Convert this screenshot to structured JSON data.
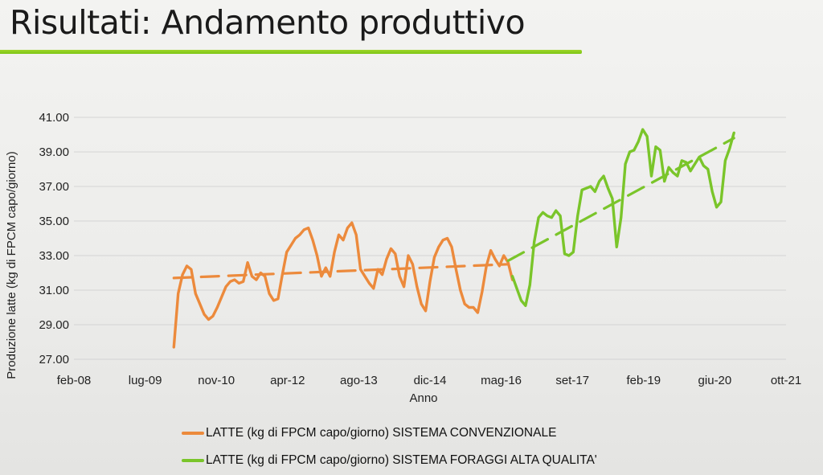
{
  "slide": {
    "title": "Risultati: Andamento produttivo"
  },
  "colors": {
    "conventional": "#ec8a3c",
    "high_quality": "#7ac52a",
    "grid": "#d4d4d4",
    "title_rule": "#8fcf1f"
  },
  "chart_data": {
    "type": "line",
    "xlabel": "Anno",
    "ylabel": "Produzione latte (kg  di FPCM capo/giorno)",
    "ylim": [
      27,
      41
    ],
    "yticks": [
      "27.00",
      "29.00",
      "31.00",
      "33.00",
      "35.00",
      "37.00",
      "39.00",
      "41.00"
    ],
    "xlim": [
      "2008-02",
      "2021-10"
    ],
    "xticks": [
      "feb-08",
      "lug-09",
      "nov-10",
      "apr-12",
      "ago-13",
      "dic-14",
      "mag-16",
      "set-17",
      "feb-19",
      "giu-20",
      "ott-21"
    ],
    "grid": "horizontal",
    "legend_position": "bottom",
    "series": [
      {
        "name": "LATTE (kg di FPCM capo/giorno) SISTEMA CONVENZIONALE",
        "color": "#ec8a3c",
        "style": "solid",
        "points": [
          [
            "2010-01",
            27.7
          ],
          [
            "2010-02",
            30.8
          ],
          [
            "2010-03",
            31.9
          ],
          [
            "2010-04",
            32.4
          ],
          [
            "2010-05",
            32.2
          ],
          [
            "2010-06",
            30.8
          ],
          [
            "2010-07",
            30.2
          ],
          [
            "2010-08",
            29.6
          ],
          [
            "2010-09",
            29.3
          ],
          [
            "2010-10",
            29.5
          ],
          [
            "2010-11",
            30.0
          ],
          [
            "2010-12",
            30.6
          ],
          [
            "2011-01",
            31.2
          ],
          [
            "2011-02",
            31.5
          ],
          [
            "2011-03",
            31.6
          ],
          [
            "2011-04",
            31.4
          ],
          [
            "2011-05",
            31.5
          ],
          [
            "2011-06",
            32.6
          ],
          [
            "2011-07",
            31.8
          ],
          [
            "2011-08",
            31.6
          ],
          [
            "2011-09",
            32.0
          ],
          [
            "2011-10",
            31.8
          ],
          [
            "2011-11",
            30.8
          ],
          [
            "2011-12",
            30.4
          ],
          [
            "2012-01",
            30.5
          ],
          [
            "2012-02",
            31.9
          ],
          [
            "2012-03",
            33.2
          ],
          [
            "2012-04",
            33.6
          ],
          [
            "2012-05",
            34.0
          ],
          [
            "2012-06",
            34.2
          ],
          [
            "2012-07",
            34.5
          ],
          [
            "2012-08",
            34.6
          ],
          [
            "2012-09",
            33.9
          ],
          [
            "2012-10",
            33.0
          ],
          [
            "2012-11",
            31.8
          ],
          [
            "2012-12",
            32.3
          ],
          [
            "2013-01",
            31.8
          ],
          [
            "2013-02",
            33.2
          ],
          [
            "2013-03",
            34.2
          ],
          [
            "2013-04",
            33.9
          ],
          [
            "2013-05",
            34.6
          ],
          [
            "2013-06",
            34.9
          ],
          [
            "2013-07",
            34.2
          ],
          [
            "2013-08",
            32.2
          ],
          [
            "2013-09",
            31.8
          ],
          [
            "2013-10",
            31.4
          ],
          [
            "2013-11",
            31.1
          ],
          [
            "2013-12",
            32.2
          ],
          [
            "2014-01",
            31.9
          ],
          [
            "2014-02",
            32.8
          ],
          [
            "2014-03",
            33.4
          ],
          [
            "2014-04",
            33.1
          ],
          [
            "2014-05",
            31.8
          ],
          [
            "2014-06",
            31.2
          ],
          [
            "2014-07",
            33.0
          ],
          [
            "2014-08",
            32.5
          ],
          [
            "2014-09",
            31.2
          ],
          [
            "2014-10",
            30.2
          ],
          [
            "2014-11",
            29.8
          ],
          [
            "2014-12",
            31.5
          ],
          [
            "2015-01",
            32.9
          ],
          [
            "2015-02",
            33.5
          ],
          [
            "2015-03",
            33.9
          ],
          [
            "2015-04",
            34.0
          ],
          [
            "2015-05",
            33.5
          ],
          [
            "2015-06",
            32.2
          ],
          [
            "2015-07",
            31.0
          ],
          [
            "2015-08",
            30.2
          ],
          [
            "2015-09",
            30.0
          ],
          [
            "2015-10",
            30.0
          ],
          [
            "2015-11",
            29.7
          ],
          [
            "2015-12",
            30.9
          ],
          [
            "2016-01",
            32.4
          ],
          [
            "2016-02",
            33.3
          ],
          [
            "2016-03",
            32.8
          ],
          [
            "2016-04",
            32.4
          ],
          [
            "2016-05",
            33.0
          ],
          [
            "2016-06",
            32.6
          ],
          [
            "2016-07",
            31.6
          ]
        ]
      },
      {
        "name": "LATTE (kg di FPCM capo/giorno) SISTEMA FORAGGI ALTA QUALITA'",
        "color": "#7ac52a",
        "style": "solid",
        "points": [
          [
            "2016-07",
            31.8
          ],
          [
            "2016-08",
            31.1
          ],
          [
            "2016-09",
            30.4
          ],
          [
            "2016-10",
            30.1
          ],
          [
            "2016-11",
            31.3
          ],
          [
            "2016-12",
            33.8
          ],
          [
            "2017-01",
            35.2
          ],
          [
            "2017-02",
            35.5
          ],
          [
            "2017-03",
            35.3
          ],
          [
            "2017-04",
            35.2
          ],
          [
            "2017-05",
            35.6
          ],
          [
            "2017-06",
            35.3
          ],
          [
            "2017-07",
            33.1
          ],
          [
            "2017-08",
            33.0
          ],
          [
            "2017-09",
            33.2
          ],
          [
            "2017-10",
            35.3
          ],
          [
            "2017-11",
            36.8
          ],
          [
            "2017-12",
            36.9
          ],
          [
            "2018-01",
            37.0
          ],
          [
            "2018-02",
            36.7
          ],
          [
            "2018-03",
            37.3
          ],
          [
            "2018-04",
            37.6
          ],
          [
            "2018-05",
            36.9
          ],
          [
            "2018-06",
            36.3
          ],
          [
            "2018-07",
            33.5
          ],
          [
            "2018-08",
            35.2
          ],
          [
            "2018-09",
            38.3
          ],
          [
            "2018-10",
            39.0
          ],
          [
            "2018-11",
            39.1
          ],
          [
            "2018-12",
            39.6
          ],
          [
            "2019-01",
            40.3
          ],
          [
            "2019-02",
            39.9
          ],
          [
            "2019-03",
            37.6
          ],
          [
            "2019-04",
            39.3
          ],
          [
            "2019-05",
            39.1
          ],
          [
            "2019-06",
            37.3
          ],
          [
            "2019-07",
            38.1
          ],
          [
            "2019-08",
            37.8
          ],
          [
            "2019-09",
            37.6
          ],
          [
            "2019-10",
            38.5
          ],
          [
            "2019-11",
            38.4
          ],
          [
            "2019-12",
            37.9
          ],
          [
            "2020-01",
            38.3
          ],
          [
            "2020-02",
            38.7
          ],
          [
            "2020-03",
            38.2
          ],
          [
            "2020-04",
            38.0
          ],
          [
            "2020-05",
            36.7
          ],
          [
            "2020-06",
            35.8
          ],
          [
            "2020-07",
            36.1
          ],
          [
            "2020-08",
            38.5
          ],
          [
            "2020-09",
            39.2
          ],
          [
            "2020-10",
            40.1
          ]
        ]
      },
      {
        "role": "trend",
        "color": "#ec8a3c",
        "style": "dashed",
        "points": [
          [
            "2010-01",
            31.7
          ],
          [
            "2016-06",
            32.5
          ]
        ]
      },
      {
        "role": "trend",
        "color": "#7ac52a",
        "style": "dashed",
        "points": [
          [
            "2016-06",
            32.7
          ],
          [
            "2020-10",
            39.8
          ]
        ]
      }
    ]
  }
}
